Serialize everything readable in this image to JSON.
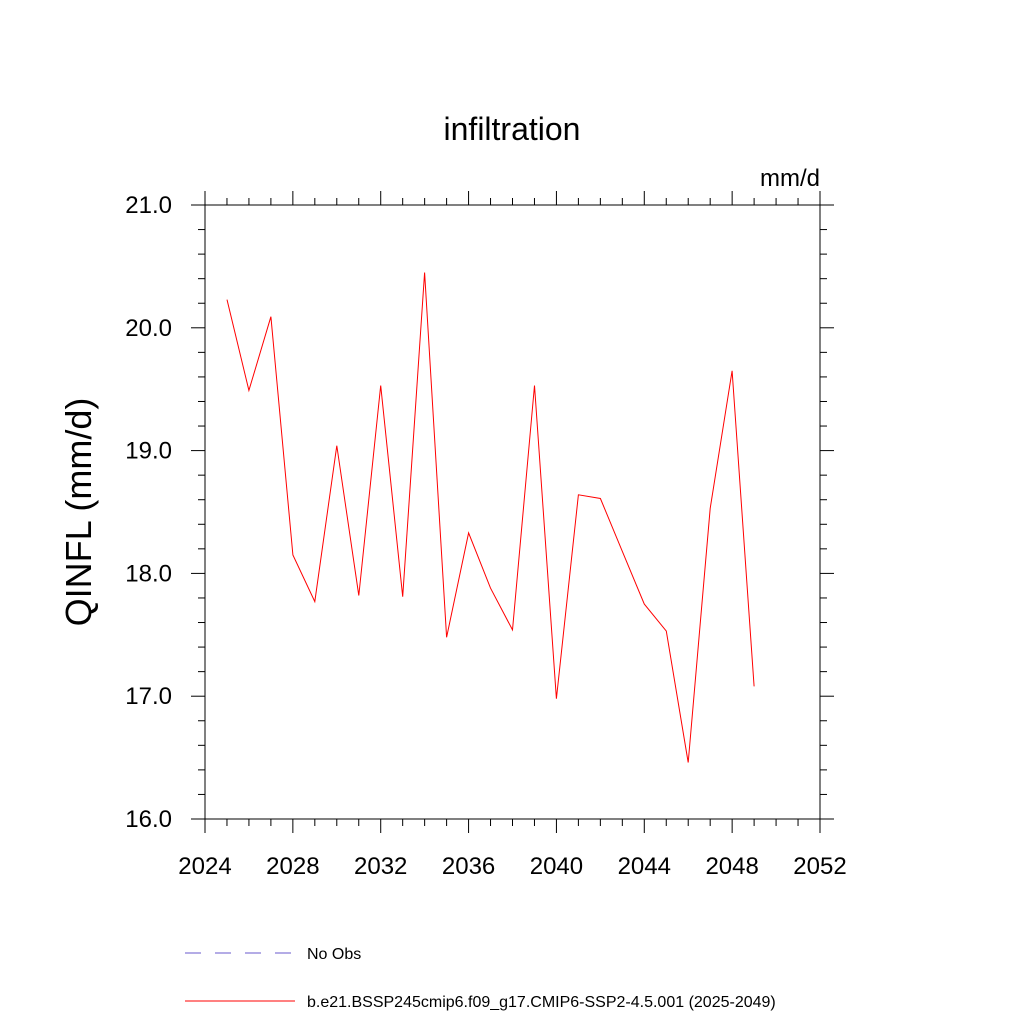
{
  "chart_data": {
    "type": "line",
    "title": "infiltration",
    "units_label": "mm/d",
    "ylabel": "QINFL  (mm/d)",
    "xlabel": "",
    "xlim": [
      2024,
      2052
    ],
    "ylim": [
      16.0,
      21.0
    ],
    "x_ticks": [
      2024,
      2028,
      2032,
      2036,
      2040,
      2044,
      2048,
      2052
    ],
    "x_tick_labels": [
      "2024",
      "2028",
      "2032",
      "2036",
      "2040",
      "2044",
      "2048",
      "2052"
    ],
    "y_ticks": [
      16.0,
      17.0,
      18.0,
      19.0,
      20.0,
      21.0
    ],
    "y_tick_labels": [
      "16.0",
      "17.0",
      "18.0",
      "19.0",
      "20.0",
      "21.0"
    ],
    "grid": false,
    "legend_position": "bottom",
    "series": [
      {
        "name": "b.e21.BSSP245cmip6.f09_g17.CMIP6-SSP2-4.5.001 (2025-2049)",
        "color": "#ff0000",
        "style": "solid",
        "x": [
          2025,
          2026,
          2027,
          2028,
          2029,
          2030,
          2031,
          2032,
          2033,
          2034,
          2035,
          2036,
          2037,
          2038,
          2039,
          2040,
          2041,
          2042,
          2043,
          2044,
          2045,
          2046,
          2047,
          2048,
          2049
        ],
        "values": [
          20.23,
          19.49,
          20.09,
          18.15,
          17.77,
          19.04,
          17.82,
          19.53,
          17.81,
          20.45,
          17.48,
          18.33,
          17.88,
          17.54,
          19.53,
          16.98,
          18.64,
          18.61,
          18.18,
          17.75,
          17.53,
          16.46,
          18.53,
          19.65,
          17.08
        ]
      }
    ],
    "legend": [
      {
        "label": "No Obs",
        "color": "#6a5acd",
        "style": "dashed"
      },
      {
        "label": "b.e21.BSSP245cmip6.f09_g17.CMIP6-SSP2-4.5.001 (2025-2049)",
        "color": "#ff0000",
        "style": "solid"
      }
    ]
  }
}
